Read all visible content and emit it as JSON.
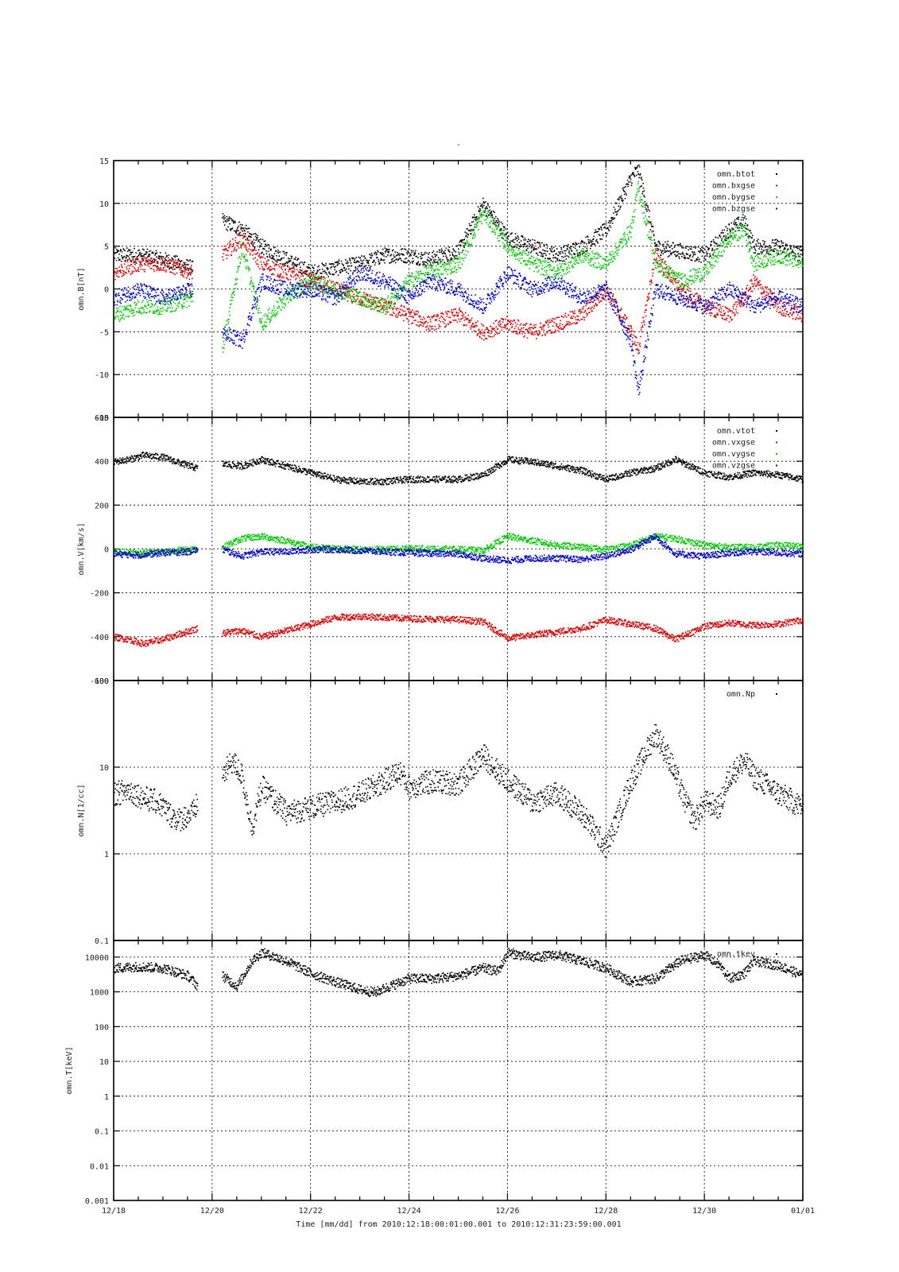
{
  "title": "-",
  "xlabel": "Time [mm/dd]  from 2010:12:18:00:01:00.001  to  2010:12:31:23:59:00.001",
  "x_tick_labels": [
    "12/18",
    "12/20",
    "12/22",
    "12/24",
    "12/26",
    "12/28",
    "12/30",
    "01/01"
  ],
  "colors": {
    "black": "#000000",
    "red": "#dd0000",
    "green": "#00cc00",
    "blue": "#0000cc"
  },
  "chart_data": [
    {
      "type": "scatter",
      "panel": "magnetic-field",
      "ylabel": "omn.B[nT]",
      "yscale": "linear",
      "ylim": [
        -15,
        15
      ],
      "yticks": [
        15,
        10,
        5,
        0,
        -5,
        -10,
        -15
      ],
      "ytick_labels": [
        "15",
        "10",
        "5",
        "0",
        "-5",
        "-10",
        "-15"
      ],
      "xlim_days": [
        0,
        14
      ],
      "legend_position": "top-right",
      "grid": true,
      "series": [
        {
          "name": "omn.btot",
          "color": "#000000",
          "x": [
            0,
            0.5,
            1,
            1.6,
            2,
            2.2,
            2.6,
            3,
            3.5,
            4,
            4.5,
            5,
            5.5,
            6,
            6.4,
            7,
            7.5,
            8,
            8.5,
            9,
            9.5,
            10,
            10.5,
            10.65,
            11,
            11.5,
            12,
            12.5,
            12.8,
            13,
            13.5,
            14
          ],
          "y": [
            4,
            4,
            3.5,
            2.5,
            null,
            8,
            7,
            5,
            3.5,
            2,
            2.5,
            3,
            4,
            4,
            3.5,
            4.5,
            10,
            6,
            5,
            4,
            5,
            7,
            13,
            14,
            5,
            4.5,
            4,
            7,
            8,
            5,
            5,
            4
          ]
        },
        {
          "name": "omn.bxgse",
          "color": "#dd0000",
          "x": [
            0,
            0.5,
            1,
            1.6,
            2,
            2.2,
            2.6,
            3,
            3.5,
            4,
            4.5,
            5,
            5.5,
            6,
            6.4,
            7,
            7.5,
            8,
            8.5,
            9,
            9.5,
            10,
            10.5,
            10.65,
            11,
            11.5,
            12,
            12.5,
            12.8,
            13,
            13.5,
            14
          ],
          "y": [
            2,
            3,
            3,
            2,
            null,
            4,
            6,
            3,
            2,
            1,
            0,
            -1,
            -2,
            -3,
            -4,
            -3,
            -5,
            -4,
            -5,
            -4,
            -3,
            0,
            -5,
            -7,
            4,
            0,
            -2,
            -3,
            -1,
            1,
            -2,
            -3
          ]
        },
        {
          "name": "omn.bygse",
          "color": "#00cc00",
          "x": [
            0,
            0.5,
            1,
            1.6,
            2,
            2.2,
            2.6,
            3,
            3.5,
            4,
            4.5,
            5,
            5.5,
            6,
            6.4,
            7,
            7.5,
            8,
            8.5,
            9,
            9.5,
            10,
            10.5,
            10.65,
            11,
            11.5,
            12,
            12.5,
            12.8,
            13,
            13.5,
            14
          ],
          "y": [
            -3,
            -2,
            -2,
            -1,
            null,
            -7,
            5,
            -4,
            -1,
            1,
            0,
            -1,
            -2,
            1,
            2,
            3,
            9,
            5,
            3,
            2,
            4,
            3,
            7,
            12,
            3,
            1,
            2,
            6,
            7,
            3,
            4,
            3
          ]
        },
        {
          "name": "omn.bzgse",
          "color": "#0000cc",
          "x": [
            0,
            0.5,
            1,
            1.6,
            2,
            2.2,
            2.6,
            3,
            3.5,
            4,
            4.5,
            5,
            5.5,
            6,
            6.4,
            7,
            7.5,
            8,
            8.5,
            9,
            9.5,
            10,
            10.5,
            10.65,
            11,
            11.5,
            12,
            12.5,
            12.8,
            13,
            13.5,
            14
          ],
          "y": [
            -1,
            0,
            -1,
            0,
            null,
            -5,
            -6,
            1,
            0,
            0,
            -1,
            2,
            1,
            -1,
            1,
            0,
            -2,
            2,
            0,
            1,
            -1,
            0,
            -6,
            -12,
            0,
            -1,
            -2,
            0,
            -1,
            -2,
            -1,
            -2
          ]
        }
      ]
    },
    {
      "type": "scatter",
      "panel": "velocity",
      "ylabel": "omn.V[km/s]",
      "yscale": "linear",
      "ylim": [
        -600,
        600
      ],
      "yticks": [
        600,
        400,
        200,
        0,
        -200,
        -400,
        -600
      ],
      "ytick_labels": [
        "600",
        "400",
        "200",
        "0",
        "-200",
        "-400",
        "-600"
      ],
      "xlim_days": [
        0,
        14
      ],
      "legend_position": "top-right",
      "grid": true,
      "series": [
        {
          "name": "omn.vtot",
          "color": "#000000",
          "x": [
            0,
            0.3,
            0.6,
            1,
            1.4,
            1.7,
            2,
            2.2,
            2.6,
            3,
            3.5,
            4,
            4.5,
            5,
            5.5,
            6,
            7,
            7.5,
            8,
            8.5,
            9,
            9.5,
            10,
            10.5,
            11,
            11.4,
            12,
            12.5,
            13,
            13.5,
            14
          ],
          "y": [
            400,
            410,
            430,
            420,
            390,
            370,
            null,
            390,
            380,
            410,
            380,
            350,
            320,
            310,
            310,
            320,
            320,
            340,
            410,
            400,
            380,
            360,
            320,
            350,
            370,
            410,
            350,
            330,
            350,
            340,
            320
          ]
        },
        {
          "name": "omn.vxgse",
          "color": "#dd0000",
          "x": [
            0,
            0.3,
            0.6,
            1,
            1.4,
            1.7,
            2,
            2.2,
            2.6,
            3,
            3.5,
            4,
            4.5,
            5,
            5.5,
            6,
            7,
            7.5,
            8,
            8.5,
            9,
            9.5,
            10,
            10.5,
            11,
            11.4,
            12,
            12.5,
            13,
            13.5,
            14
          ],
          "y": [
            -400,
            -410,
            -430,
            -410,
            -380,
            -360,
            null,
            -380,
            -370,
            -400,
            -370,
            -340,
            -310,
            -305,
            -310,
            -315,
            -320,
            -330,
            -405,
            -390,
            -375,
            -360,
            -320,
            -340,
            -360,
            -410,
            -350,
            -335,
            -345,
            -340,
            -320
          ]
        },
        {
          "name": "omn.vygse",
          "color": "#00cc00",
          "x": [
            0,
            0.5,
            1,
            1.5,
            1.7,
            2,
            2.2,
            2.6,
            3,
            3.5,
            4,
            4.5,
            5,
            5.5,
            6,
            7,
            7.5,
            8,
            8.5,
            9,
            9.5,
            10,
            10.5,
            11,
            11.4,
            12,
            12.5,
            13,
            13.5,
            14
          ],
          "y": [
            -10,
            -15,
            -10,
            0,
            5,
            null,
            10,
            50,
            60,
            40,
            10,
            5,
            0,
            0,
            5,
            0,
            -5,
            60,
            40,
            20,
            10,
            0,
            20,
            60,
            50,
            20,
            10,
            10,
            20,
            15
          ]
        },
        {
          "name": "omn.vzgse",
          "color": "#0000cc",
          "x": [
            0,
            0.5,
            1,
            1.5,
            1.7,
            2,
            2.2,
            2.6,
            3,
            3.5,
            4,
            4.5,
            5,
            5.5,
            6,
            7,
            7.5,
            8,
            8.5,
            9,
            9.5,
            10,
            10.5,
            11,
            11.4,
            12,
            12.5,
            13,
            13.5,
            14
          ],
          "y": [
            -20,
            -25,
            -15,
            -10,
            0,
            null,
            0,
            -30,
            -10,
            -10,
            0,
            0,
            -5,
            -10,
            -15,
            -20,
            -40,
            -50,
            -40,
            -40,
            -45,
            -30,
            0,
            60,
            -20,
            -30,
            -15,
            -10,
            -15,
            -20
          ]
        }
      ]
    },
    {
      "type": "scatter",
      "panel": "density",
      "ylabel": "omn.N[1/cc]",
      "yscale": "log",
      "ylim": [
        0.1,
        100
      ],
      "yticks": [
        100,
        10,
        1,
        0.1
      ],
      "ytick_labels": [
        "100",
        "10",
        "1",
        "0.1"
      ],
      "xlim_days": [
        0,
        14
      ],
      "legend_position": "top-right",
      "grid": true,
      "series": [
        {
          "name": "omn.Np",
          "color": "#000000",
          "x": [
            0,
            0.3,
            0.6,
            0.9,
            1.1,
            1.3,
            1.6,
            1.7,
            2,
            2.2,
            2.4,
            2.6,
            2.8,
            3,
            3.5,
            4,
            4.5,
            5,
            5.5,
            5.8,
            6,
            6.5,
            7,
            7.5,
            7.8,
            8,
            8.5,
            9,
            9.5,
            10,
            10.5,
            11,
            11.3,
            11.6,
            11.8,
            12,
            12.3,
            12.5,
            12.8,
            13,
            13.5,
            14
          ],
          "y": [
            5,
            5.5,
            4.5,
            4,
            3,
            2.5,
            3,
            4,
            null,
            8,
            12,
            8,
            2,
            6,
            3,
            3.5,
            4,
            5,
            7,
            9,
            6,
            7,
            6.5,
            14,
            9,
            7,
            4,
            5,
            3,
            1.2,
            7,
            25,
            12,
            4,
            2.5,
            4,
            3.5,
            8,
            12,
            8,
            5,
            3.5
          ]
        }
      ]
    },
    {
      "type": "scatter",
      "panel": "temperature",
      "ylabel": "omn.T[keV]",
      "yscale": "log",
      "ylim": [
        0.001,
        30000
      ],
      "yticks": [
        10000,
        1000,
        100,
        10,
        1,
        0.1,
        0.01,
        0.001
      ],
      "ytick_labels": [
        "10000",
        "1000",
        "100",
        "10",
        "1",
        "0.1",
        "0.01",
        "0.001"
      ],
      "xlim_days": [
        0,
        14
      ],
      "legend_position": "top-right",
      "grid": true,
      "series": [
        {
          "name": "omn.tkev",
          "color": "#000000",
          "x": [
            0,
            0.5,
            1,
            1.5,
            1.7,
            2,
            2.2,
            2.5,
            2.8,
            3,
            3.5,
            4,
            4.5,
            5,
            5.3,
            5.6,
            6,
            6.5,
            7,
            7.5,
            7.8,
            8,
            8.5,
            9,
            9.5,
            10,
            10.5,
            11,
            11.5,
            12,
            12.3,
            12.5,
            12.8,
            13,
            13.5,
            14
          ],
          "y": [
            5000,
            5500,
            5000,
            3000,
            1500,
            null,
            3000,
            1500,
            8000,
            14000,
            8000,
            3500,
            2000,
            1200,
            1000,
            1500,
            2500,
            2500,
            3000,
            5000,
            4000,
            14000,
            10000,
            12000,
            8000,
            5000,
            2000,
            2500,
            8000,
            12000,
            6000,
            2500,
            3500,
            8000,
            6000,
            3000
          ]
        }
      ]
    }
  ]
}
